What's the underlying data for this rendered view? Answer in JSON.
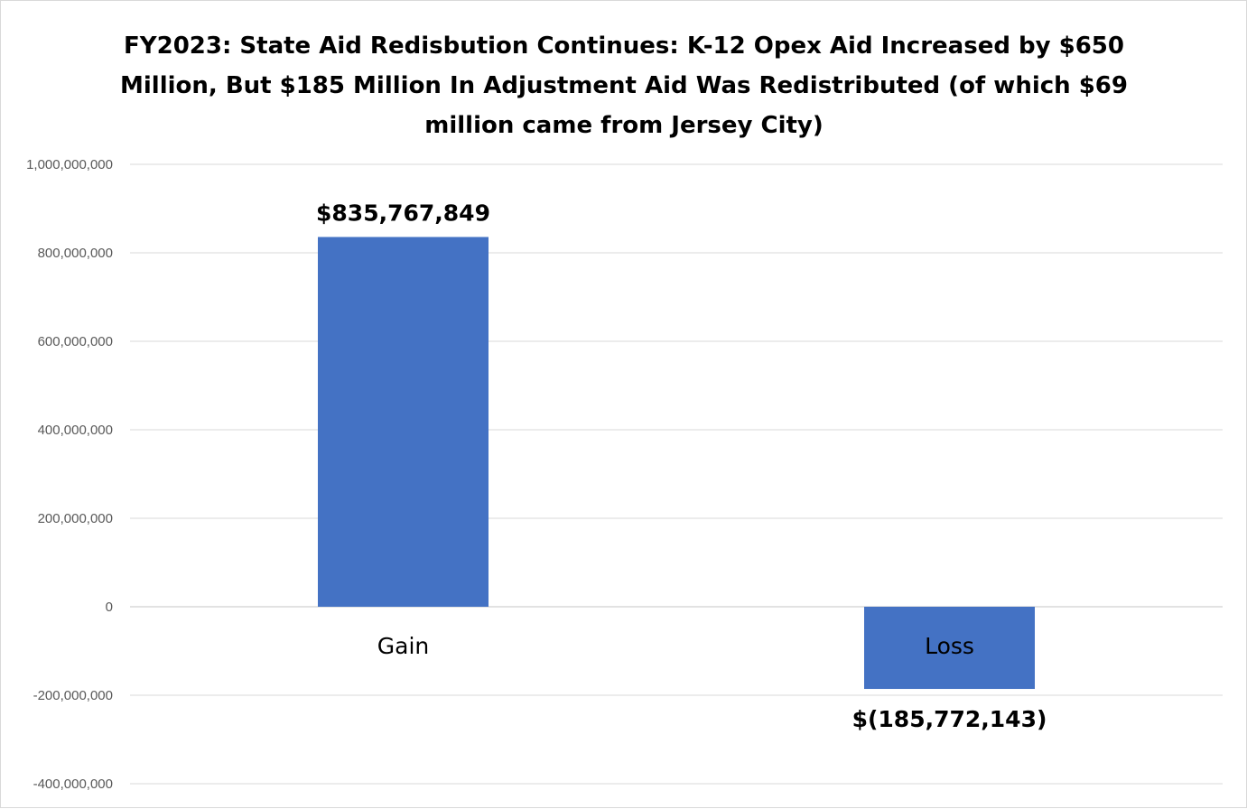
{
  "chart_data": {
    "type": "bar",
    "title": "FY2023: State Aid Redisbution Continues: K-12 Opex Aid Increased by $650 Million, But $185 Million In Adjustment Aid Was Redistributed (of which $69 million came from Jersey City)",
    "categories": [
      "Gain",
      "Loss"
    ],
    "values": [
      835767849,
      -185772143
    ],
    "data_labels": [
      "$835,767,849",
      "$(185,772,143)"
    ],
    "ylim": [
      -400000000,
      1000000000
    ],
    "yticks": [
      -400000000,
      -200000000,
      0,
      200000000,
      400000000,
      600000000,
      800000000,
      1000000000
    ],
    "ytick_labels": [
      "-400,000,000",
      "-200,000,000",
      "0",
      "200,000,000",
      "400,000,000",
      "600,000,000",
      "800,000,000",
      "1,000,000,000"
    ],
    "xlabel": "",
    "ylabel": "",
    "grid": true,
    "legend": "none",
    "bar_color": "#4472C4",
    "grid_color": "#d9d9d9"
  }
}
